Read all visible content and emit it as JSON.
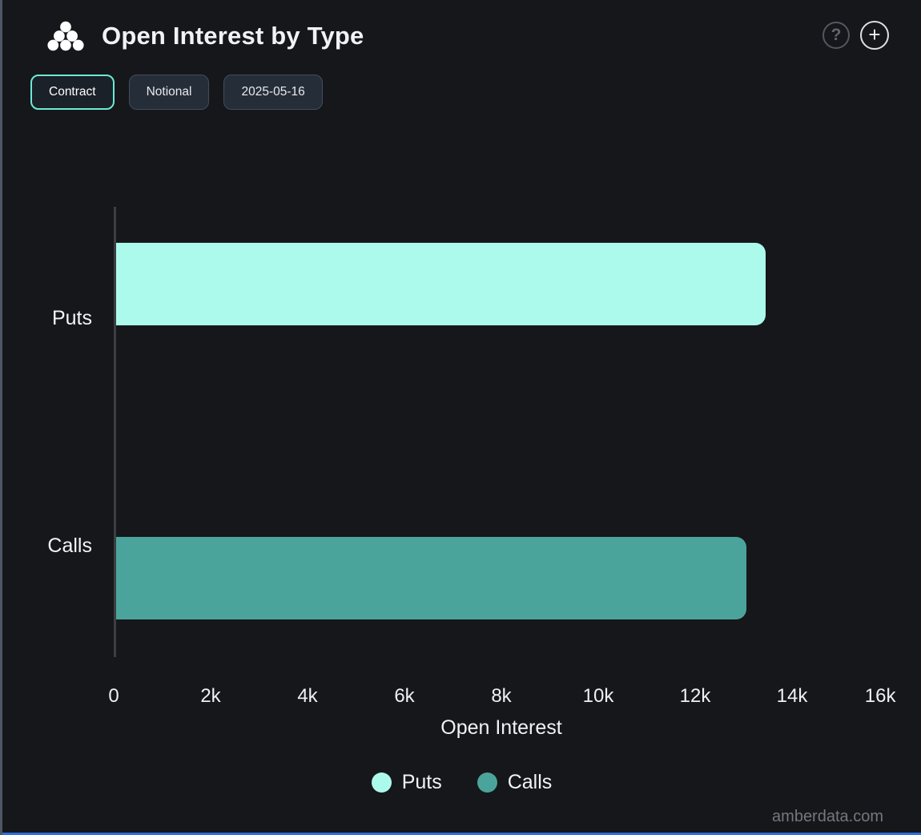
{
  "header": {
    "title": "Open Interest by Type",
    "help_glyph": "?",
    "add_glyph": "+"
  },
  "toolbar": {
    "buttons": [
      {
        "label": "Contract",
        "active": true
      },
      {
        "label": "Notional",
        "active": false
      },
      {
        "label": "2025-05-16",
        "active": false
      }
    ]
  },
  "chart_data": {
    "type": "bar",
    "orientation": "horizontal",
    "title": "Open Interest by Type",
    "categories": [
      "Puts",
      "Calls"
    ],
    "series": [
      {
        "name": "Puts",
        "color": "#acfaec",
        "values": [
          13400,
          0
        ]
      },
      {
        "name": "Calls",
        "color": "#4ba49b",
        "values": [
          0,
          13000
        ]
      }
    ],
    "xlabel": "Open Interest",
    "x_ticks": [
      "0",
      "2k",
      "4k",
      "6k",
      "8k",
      "10k",
      "12k",
      "14k",
      "16k"
    ],
    "xlim": [
      0,
      16000
    ],
    "grid": false,
    "legend": {
      "position": "bottom",
      "items": [
        "Puts",
        "Calls"
      ]
    }
  },
  "footer": {
    "watermark": "amberdata.com"
  },
  "colors": {
    "background": "#16171a",
    "accent_mint": "#6ce9d6",
    "puts": "#acfaec",
    "calls": "#4ba49b",
    "bottom_bar": "#2f6fe0",
    "left_border": "#4e5665"
  }
}
